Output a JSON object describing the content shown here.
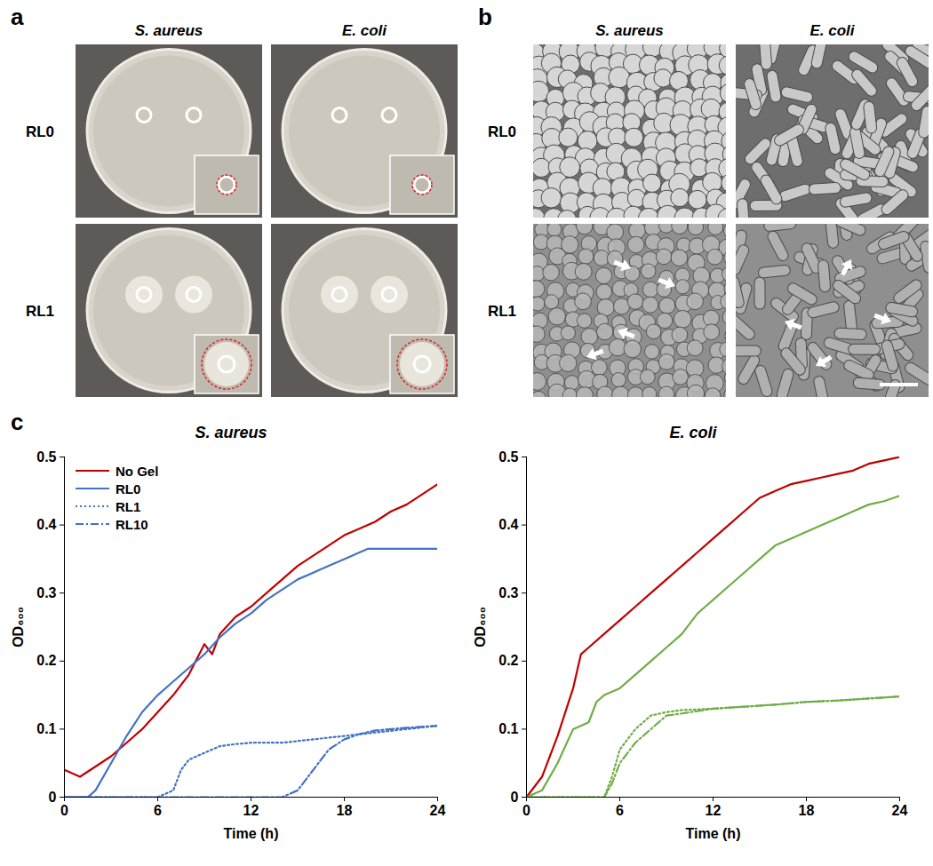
{
  "panels": [
    {
      "label": "a",
      "columns": [
        "S. aureus",
        "E. coli"
      ],
      "rows": [
        "RL0",
        "RL1"
      ]
    },
    {
      "label": "b",
      "columns": [
        "S. aureus",
        "E. coli"
      ],
      "rows": [
        "RL0",
        "RL1"
      ]
    },
    {
      "label": "c"
    }
  ],
  "chart_data": [
    {
      "type": "line",
      "title": "S. aureus",
      "xlabel": "Time (h)",
      "ylabel": "OD₆₀₀",
      "xlim": [
        0,
        24
      ],
      "xticks": [
        0,
        6,
        12,
        18,
        24
      ],
      "ylim": [
        0,
        0.5
      ],
      "yticks": [
        0,
        0.1,
        0.2,
        0.3,
        0.4,
        0.5
      ],
      "legend": "upper left",
      "series": [
        {
          "name": "No Gel",
          "color": "#c00000",
          "line_style": "solid",
          "x": [
            0,
            1,
            2,
            3,
            4,
            5,
            6,
            7,
            8,
            9,
            9.5,
            10,
            11,
            12,
            13,
            14,
            15,
            16,
            17,
            18,
            19,
            20,
            21,
            22,
            23,
            24
          ],
          "values": [
            0.04,
            0.03,
            0.045,
            0.06,
            0.08,
            0.1,
            0.125,
            0.15,
            0.18,
            0.225,
            0.21,
            0.24,
            0.265,
            0.28,
            0.3,
            0.32,
            0.34,
            0.355,
            0.37,
            0.385,
            0.395,
            0.405,
            0.42,
            0.43,
            0.445,
            0.46
          ]
        },
        {
          "name": "RL0",
          "color": "#4472c4",
          "line_style": "solid",
          "x": [
            0,
            1.5,
            2,
            3,
            4,
            5,
            6,
            7,
            8,
            9,
            10,
            11,
            12,
            13,
            14,
            15,
            16,
            17,
            18,
            19,
            19.5,
            24
          ],
          "values": [
            0,
            0,
            0.01,
            0.05,
            0.09,
            0.125,
            0.15,
            0.17,
            0.19,
            0.21,
            0.235,
            0.255,
            0.27,
            0.29,
            0.305,
            0.32,
            0.33,
            0.34,
            0.35,
            0.36,
            0.365,
            0.365
          ]
        },
        {
          "name": "RL1",
          "color": "#4472c4",
          "line_style": "dotted",
          "x": [
            0,
            6,
            7,
            7.5,
            8,
            9,
            10,
            11,
            12,
            14,
            16,
            18,
            20,
            22,
            24
          ],
          "values": [
            0,
            0,
            0.01,
            0.04,
            0.055,
            0.065,
            0.075,
            0.078,
            0.08,
            0.08,
            0.085,
            0.09,
            0.095,
            0.1,
            0.105
          ]
        },
        {
          "name": "RL10",
          "color": "#4472c4",
          "line_style": "dashdot",
          "x": [
            0,
            14,
            15,
            16,
            17,
            18,
            19,
            20,
            22,
            24
          ],
          "values": [
            0,
            0,
            0.01,
            0.04,
            0.07,
            0.085,
            0.093,
            0.098,
            0.102,
            0.105
          ]
        }
      ]
    },
    {
      "type": "line",
      "title": "E. coli",
      "xlabel": "Time (h)",
      "ylabel": "OD₆₀₀",
      "xlim": [
        0,
        24
      ],
      "xticks": [
        0,
        6,
        12,
        18,
        24
      ],
      "ylim": [
        0,
        0.5
      ],
      "yticks": [
        0,
        0.1,
        0.2,
        0.3,
        0.4,
        0.5
      ],
      "series": [
        {
          "name": "No Gel",
          "color": "#c00000",
          "line_style": "solid",
          "x": [
            0,
            1,
            2,
            3,
            3.5,
            4,
            5,
            6,
            7,
            8,
            9,
            10,
            11,
            12,
            13,
            14,
            15,
            16,
            17,
            18,
            19,
            20,
            21,
            22,
            23,
            24
          ],
          "values": [
            0,
            0.03,
            0.09,
            0.16,
            0.21,
            0.22,
            0.24,
            0.26,
            0.28,
            0.3,
            0.32,
            0.34,
            0.36,
            0.38,
            0.4,
            0.42,
            0.44,
            0.45,
            0.46,
            0.465,
            0.47,
            0.475,
            0.48,
            0.49,
            0.495,
            0.5
          ]
        },
        {
          "name": "RL0",
          "color": "#70ad47",
          "line_style": "solid",
          "x": [
            0,
            1,
            2,
            3,
            4,
            4.5,
            5,
            6,
            7,
            8,
            9,
            10,
            11,
            11.5,
            12,
            13,
            14,
            15,
            16,
            17,
            18,
            19,
            20,
            21,
            22,
            23,
            24
          ],
          "values": [
            0,
            0.01,
            0.05,
            0.1,
            0.11,
            0.14,
            0.15,
            0.16,
            0.18,
            0.2,
            0.22,
            0.24,
            0.27,
            0.28,
            0.29,
            0.31,
            0.33,
            0.35,
            0.37,
            0.38,
            0.39,
            0.4,
            0.41,
            0.42,
            0.43,
            0.435,
            0.443
          ]
        },
        {
          "name": "RL1",
          "color": "#70ad47",
          "line_style": "dotted",
          "x": [
            0,
            5,
            5.5,
            6,
            7,
            8,
            9,
            10,
            12,
            14,
            16,
            18,
            20,
            22,
            24
          ],
          "values": [
            0,
            0,
            0.03,
            0.07,
            0.1,
            0.12,
            0.125,
            0.128,
            0.13,
            0.133,
            0.136,
            0.14,
            0.142,
            0.145,
            0.148
          ]
        },
        {
          "name": "RL10",
          "color": "#70ad47",
          "line_style": "dashdot",
          "x": [
            0,
            5,
            5.5,
            6,
            7,
            8,
            8.5,
            9,
            10,
            12,
            14,
            16,
            18,
            20,
            22,
            24
          ],
          "values": [
            0,
            0,
            0.02,
            0.05,
            0.08,
            0.1,
            0.11,
            0.12,
            0.123,
            0.13,
            0.133,
            0.136,
            0.14,
            0.142,
            0.145,
            0.148
          ]
        }
      ]
    }
  ]
}
